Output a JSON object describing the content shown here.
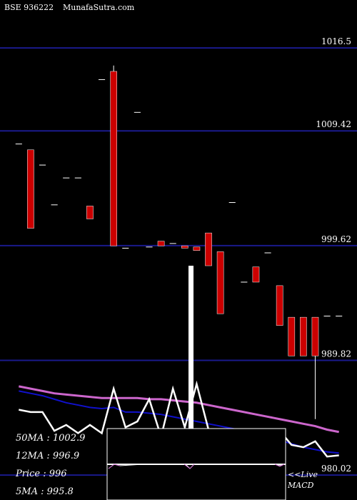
{
  "header": {
    "symbol": "BSE 936222",
    "site": "MunafaSutra.com"
  },
  "colors": {
    "background": "#000000",
    "gridline": "#1a1a8c",
    "bear_candle": "#cc0000",
    "bull_candle": "#ffffff",
    "ma_short": "#ffffff",
    "ma_mid": "#1010cc",
    "ma_long": "#cc66cc",
    "text": "#ffffff"
  },
  "chart_data": {
    "type": "candlestick",
    "ylim": [
      978.5,
      1019.5
    ],
    "price_levels": [
      "1016.5",
      "1009.42",
      "999.62",
      "989.82",
      "980.02"
    ],
    "price_level_values": [
      1016.5,
      1009.42,
      999.62,
      989.82,
      980.02
    ],
    "candles": [
      {
        "open": 1008.3,
        "high": 1008.3,
        "low": 1008.3,
        "close": 1008.3
      },
      {
        "open": 1007.8,
        "high": 1007.8,
        "low": 1001.1,
        "close": 1001.1
      },
      {
        "open": 1006.5,
        "high": 1006.5,
        "low": 1006.5,
        "close": 1006.5
      },
      {
        "open": 1003.1,
        "high": 1003.1,
        "low": 1003.1,
        "close": 1003.1
      },
      {
        "open": 1005.4,
        "high": 1005.4,
        "low": 1005.4,
        "close": 1005.4
      },
      {
        "open": 1005.4,
        "high": 1005.4,
        "low": 1005.4,
        "close": 1005.4
      },
      {
        "open": 1003.0,
        "high": 1003.0,
        "low": 1001.9,
        "close": 1001.9
      },
      {
        "open": 1013.8,
        "high": 1013.8,
        "low": 1013.8,
        "close": 1013.8
      },
      {
        "open": 1014.5,
        "high": 1015.0,
        "low": 999.6,
        "close": 999.6
      },
      {
        "open": 999.4,
        "high": 999.4,
        "low": 999.4,
        "close": 999.4
      },
      {
        "open": 1011.0,
        "high": 1011.0,
        "low": 1011.0,
        "close": 1011.0
      },
      {
        "open": 999.5,
        "high": 999.5,
        "low": 999.5,
        "close": 999.5
      },
      {
        "open": 1000.0,
        "high": 1000.0,
        "low": 999.6,
        "close": 999.6
      },
      {
        "open": 999.8,
        "high": 999.8,
        "low": 999.8,
        "close": 999.8
      },
      {
        "open": 999.6,
        "high": 999.6,
        "low": 999.4,
        "close": 999.4
      },
      {
        "open": 999.5,
        "high": 999.5,
        "low": 999.2,
        "close": 999.2
      },
      {
        "open": 1000.7,
        "high": 1000.7,
        "low": 997.9,
        "close": 997.9
      },
      {
        "open": 999.1,
        "high": 999.1,
        "low": 993.8,
        "close": 993.8
      },
      {
        "open": 1003.3,
        "high": 1003.3,
        "low": 1003.3,
        "close": 1003.3
      },
      {
        "open": 996.5,
        "high": 996.5,
        "low": 996.5,
        "close": 996.5
      },
      {
        "open": 997.8,
        "high": 997.8,
        "low": 996.5,
        "close": 996.5
      },
      {
        "open": 999.0,
        "high": 999.0,
        "low": 999.0,
        "close": 999.0
      },
      {
        "open": 996.2,
        "high": 996.2,
        "low": 992.8,
        "close": 992.8
      },
      {
        "open": 993.5,
        "high": 993.5,
        "low": 990.2,
        "close": 990.2
      },
      {
        "open": 993.5,
        "high": 993.5,
        "low": 990.2,
        "close": 990.2
      },
      {
        "open": 993.5,
        "high": 993.5,
        "low": 984.8,
        "close": 990.2
      },
      {
        "open": 993.6,
        "high": 993.6,
        "low": 993.6,
        "close": 993.6
      },
      {
        "open": 993.6,
        "high": 993.6,
        "low": 993.6,
        "close": 993.6
      }
    ],
    "ma_short": [
      985.6,
      985.4,
      985.4,
      983.8,
      984.3,
      983.6,
      984.3,
      983.6,
      987.4,
      984.1,
      984.6,
      986.5,
      983.3,
      987.4,
      984.1,
      987.8,
      983.9,
      983.6,
      983.8,
      983.5,
      983.3,
      982.8,
      983.8,
      982.6,
      982.4,
      982.9,
      981.6,
      981.7
    ],
    "ma_mid": [
      987.2,
      987.0,
      986.8,
      986.5,
      986.2,
      986.0,
      985.8,
      985.7,
      985.8,
      985.4,
      985.4,
      985.3,
      985.2,
      985.0,
      984.8,
      984.6,
      984.4,
      984.2,
      984.0,
      983.8,
      983.6,
      983.3,
      983.0,
      982.7,
      982.4,
      982.2,
      982.0,
      981.9
    ],
    "ma_long": [
      987.6,
      987.4,
      987.2,
      987.0,
      986.9,
      986.8,
      986.7,
      986.6,
      986.6,
      986.6,
      986.6,
      986.5,
      986.5,
      986.4,
      986.3,
      986.2,
      986.0,
      985.8,
      985.6,
      985.4,
      985.2,
      985.0,
      984.8,
      984.6,
      984.4,
      984.2,
      983.9,
      983.7
    ]
  },
  "stats": {
    "ma50": "50MA : 1002.9",
    "ma12": "12MA : 996.9",
    "price": "Price   : 996",
    "ma5": "5MA : 995.8"
  },
  "macd": {
    "prefix": "<<Live",
    "label": "MACD"
  }
}
